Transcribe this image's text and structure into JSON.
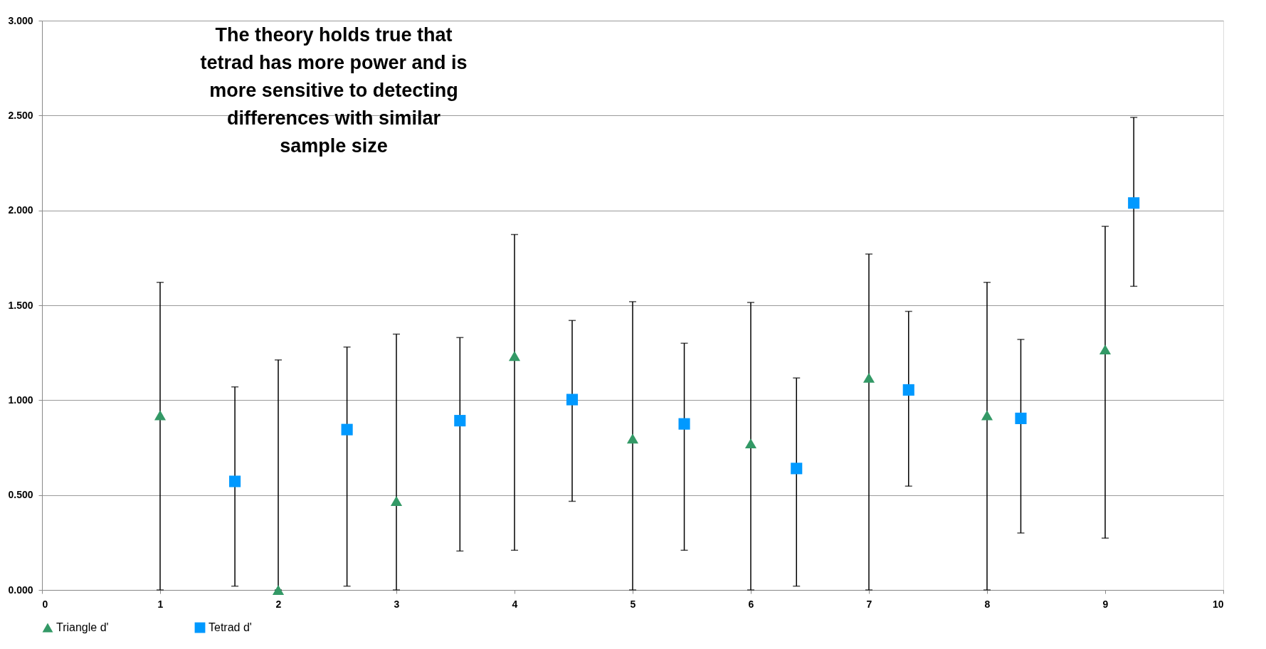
{
  "chart_data": {
    "type": "scatter",
    "annotations": [
      "The theory holds true that tetrad has more power and is more sensitive to detecting differences with similar sample size"
    ],
    "series": [
      {
        "name": "Triangle d'",
        "color": "#339966",
        "marker": "triangle",
        "x": [
          1,
          2,
          3,
          4,
          5,
          6,
          7,
          8,
          9
        ],
        "values": [
          0.921,
          0.0,
          0.469,
          1.233,
          0.798,
          0.772,
          1.118,
          0.921,
          1.267
        ],
        "errors": [
          [
            0.0,
            1.621
          ],
          [
            0.0,
            1.212
          ],
          [
            0.0,
            1.348
          ],
          [
            0.209,
            1.873
          ],
          [
            0.0,
            1.519
          ],
          [
            0.0,
            1.515
          ],
          [
            0.0,
            1.77
          ],
          [
            0.0,
            1.621
          ],
          [
            0.273,
            1.916
          ]
        ]
      },
      {
        "name": "Tetrad d'",
        "color": "#0099ff",
        "marker": "square",
        "x": [
          1.633,
          2.582,
          3.538,
          4.488,
          5.437,
          6.387,
          7.336,
          8.286,
          9.242
        ],
        "values": [
          0.572,
          0.845,
          0.892,
          1.003,
          0.875,
          0.64,
          1.054,
          0.904,
          2.039
        ],
        "errors": [
          [
            0.02,
            1.07
          ],
          [
            0.02,
            1.28
          ],
          [
            0.205,
            1.33
          ],
          [
            0.467,
            1.42
          ],
          [
            0.209,
            1.3
          ],
          [
            0.02,
            1.117
          ],
          [
            0.547,
            1.468
          ],
          [
            0.3,
            1.32
          ],
          [
            1.6,
            2.49
          ]
        ]
      }
    ],
    "xlim": [
      0,
      10
    ],
    "xticks": [
      0,
      1,
      2,
      3,
      4,
      5,
      6,
      7,
      8,
      9,
      10
    ],
    "ylim": [
      0,
      3
    ],
    "yticks": [
      {
        "value": 0,
        "label": "0.000"
      },
      {
        "value": 0.5,
        "label": "0.500"
      },
      {
        "value": 1,
        "label": "1.000"
      },
      {
        "value": 1.5,
        "label": "1.500"
      },
      {
        "value": 2,
        "label": "2.000"
      },
      {
        "value": 2.5,
        "label": "2.500"
      },
      {
        "value": 3,
        "label": "3.000"
      }
    ],
    "grid": "y",
    "legend": "bottom"
  }
}
